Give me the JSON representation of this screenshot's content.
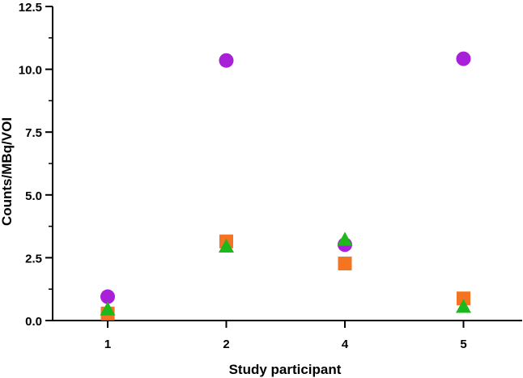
{
  "chart_data": {
    "type": "scatter",
    "title": "",
    "xlabel": "Study participant",
    "ylabel": "Counts/MBq/VOI",
    "categories": [
      "1",
      "2",
      "4",
      "5"
    ],
    "ylim": [
      0,
      12.5
    ],
    "yticks": [
      0,
      2.5,
      5,
      7.5,
      10,
      12.5
    ],
    "ytick_labels": [
      "0.0",
      "2.5",
      "5.0",
      "7.5",
      "10.0",
      "12.5"
    ],
    "grid": false,
    "legend": "none",
    "series": [
      {
        "name": "circle",
        "marker": "circle",
        "color": "#a820d8",
        "values": [
          0.95,
          10.35,
          3.02,
          10.42
        ]
      },
      {
        "name": "square",
        "marker": "square",
        "color": "#f57421",
        "values": [
          0.28,
          3.15,
          2.27,
          0.88
        ]
      },
      {
        "name": "triangle",
        "marker": "triangle",
        "color": "#1cb81c",
        "values": [
          0.45,
          2.95,
          3.22,
          0.55
        ]
      }
    ]
  }
}
